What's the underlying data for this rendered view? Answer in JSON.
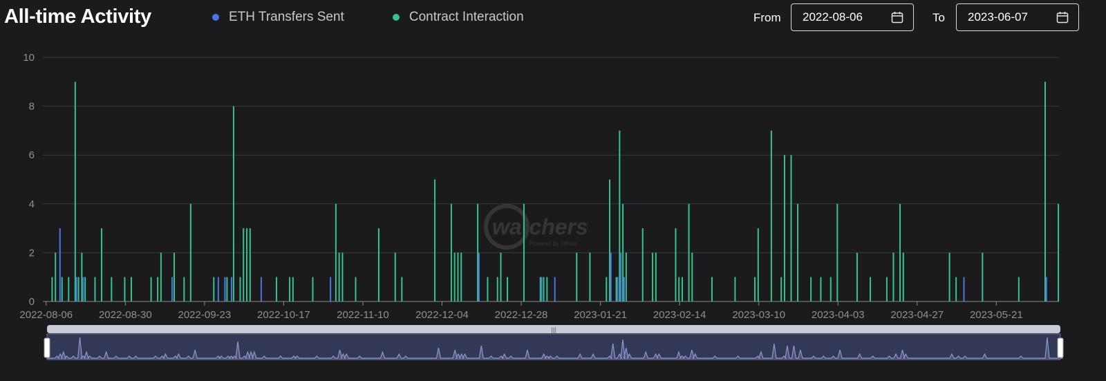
{
  "header": {
    "title": "All-time Activity"
  },
  "legend": [
    {
      "label": "ETH Transfers Sent",
      "color": "#4a78e0"
    },
    {
      "label": "Contract Interaction",
      "color": "#34c38f"
    }
  ],
  "range": {
    "from_label": "From",
    "from_value": "2022-08-06",
    "to_label": "To",
    "to_value": "2023-06-07",
    "icon": "calendar-icon"
  },
  "watermark": {
    "text": "watchers",
    "subtext": "Powered By Infinite"
  },
  "chart_data": {
    "type": "bar",
    "x_start": "2022-08-06",
    "x_end": "2023-06-07",
    "xtick_labels": [
      "2022-08-06",
      "2022-08-30",
      "2022-09-23",
      "2022-10-17",
      "2022-11-10",
      "2022-12-04",
      "2022-12-28",
      "2023-01-21",
      "2023-02-14",
      "2023-03-10",
      "2023-04-03",
      "2023-04-27",
      "2023-05-21"
    ],
    "ylim": [
      0,
      10
    ],
    "ytick_labels": [
      "0",
      "2",
      "4",
      "6",
      "8",
      "10"
    ],
    "grid": true,
    "legend_position": "top",
    "series": [
      {
        "name": "Contract Interaction",
        "color": "#34c38f",
        "points": [
          [
            "2022-08-08",
            1
          ],
          [
            "2022-08-09",
            2
          ],
          [
            "2022-08-11",
            1
          ],
          [
            "2022-08-13",
            1
          ],
          [
            "2022-08-15",
            9
          ],
          [
            "2022-08-16",
            1
          ],
          [
            "2022-08-17",
            2
          ],
          [
            "2022-08-18",
            1
          ],
          [
            "2022-08-21",
            1
          ],
          [
            "2022-08-23",
            3
          ],
          [
            "2022-08-26",
            1
          ],
          [
            "2022-08-30",
            1
          ],
          [
            "2022-09-01",
            1
          ],
          [
            "2022-09-07",
            1
          ],
          [
            "2022-09-09",
            1
          ],
          [
            "2022-09-10",
            2
          ],
          [
            "2022-09-14",
            2
          ],
          [
            "2022-09-17",
            1
          ],
          [
            "2022-09-19",
            4
          ],
          [
            "2022-09-26",
            1
          ],
          [
            "2022-09-30",
            1
          ],
          [
            "2022-10-02",
            8
          ],
          [
            "2022-10-04",
            1
          ],
          [
            "2022-10-05",
            3
          ],
          [
            "2022-10-06",
            3
          ],
          [
            "2022-10-07",
            3
          ],
          [
            "2022-10-15",
            1
          ],
          [
            "2022-10-19",
            1
          ],
          [
            "2022-10-20",
            1
          ],
          [
            "2022-10-26",
            1
          ],
          [
            "2022-11-02",
            4
          ],
          [
            "2022-11-03",
            2
          ],
          [
            "2022-11-04",
            2
          ],
          [
            "2022-11-08",
            1
          ],
          [
            "2022-11-15",
            3
          ],
          [
            "2022-11-20",
            2
          ],
          [
            "2022-11-22",
            1
          ],
          [
            "2022-12-02",
            5
          ],
          [
            "2022-12-07",
            4
          ],
          [
            "2022-12-08",
            2
          ],
          [
            "2022-12-09",
            2
          ],
          [
            "2022-12-10",
            2
          ],
          [
            "2022-12-15",
            4
          ],
          [
            "2022-12-18",
            1
          ],
          [
            "2022-12-21",
            1
          ],
          [
            "2022-12-22",
            2
          ],
          [
            "2022-12-24",
            1
          ],
          [
            "2022-12-29",
            4
          ],
          [
            "2023-01-03",
            1
          ],
          [
            "2023-01-04",
            1
          ],
          [
            "2023-01-05",
            1
          ],
          [
            "2023-01-14",
            2
          ],
          [
            "2023-01-18",
            2
          ],
          [
            "2023-01-23",
            1
          ],
          [
            "2023-01-24",
            5
          ],
          [
            "2023-01-26",
            1
          ],
          [
            "2023-01-27",
            7
          ],
          [
            "2023-01-28",
            4
          ],
          [
            "2023-01-29",
            2
          ],
          [
            "2023-02-03",
            3
          ],
          [
            "2023-02-06",
            2
          ],
          [
            "2023-02-07",
            2
          ],
          [
            "2023-02-13",
            3
          ],
          [
            "2023-02-14",
            1
          ],
          [
            "2023-02-15",
            1
          ],
          [
            "2023-02-17",
            4
          ],
          [
            "2023-02-18",
            2
          ],
          [
            "2023-02-24",
            1
          ],
          [
            "2023-03-03",
            1
          ],
          [
            "2023-03-09",
            1
          ],
          [
            "2023-03-10",
            3
          ],
          [
            "2023-03-14",
            7
          ],
          [
            "2023-03-17",
            1
          ],
          [
            "2023-03-18",
            6
          ],
          [
            "2023-03-20",
            6
          ],
          [
            "2023-03-22",
            4
          ],
          [
            "2023-03-26",
            1
          ],
          [
            "2023-03-29",
            1
          ],
          [
            "2023-04-01",
            1
          ],
          [
            "2023-04-03",
            4
          ],
          [
            "2023-04-09",
            2
          ],
          [
            "2023-04-13",
            1
          ],
          [
            "2023-04-18",
            1
          ],
          [
            "2023-04-20",
            2
          ],
          [
            "2023-04-22",
            4
          ],
          [
            "2023-04-23",
            2
          ],
          [
            "2023-05-07",
            2
          ],
          [
            "2023-05-09",
            1
          ],
          [
            "2023-05-17",
            2
          ],
          [
            "2023-05-28",
            1
          ],
          [
            "2023-06-05",
            9
          ],
          [
            "2023-06-09",
            4
          ]
        ]
      },
      {
        "name": "ETH Transfers Sent",
        "color": "#4a78e0",
        "points": [
          [
            "2022-08-10",
            3
          ],
          [
            "2022-08-15",
            1
          ],
          [
            "2022-08-17",
            1
          ],
          [
            "2022-09-13",
            1
          ],
          [
            "2022-09-27",
            1
          ],
          [
            "2022-09-29",
            1
          ],
          [
            "2022-10-01",
            1
          ],
          [
            "2022-10-10",
            1
          ],
          [
            "2022-10-31",
            1
          ],
          [
            "2023-01-03",
            1
          ],
          [
            "2023-01-07",
            1
          ],
          [
            "2023-01-24",
            2
          ],
          [
            "2023-01-26",
            1
          ],
          [
            "2023-01-27",
            2
          ],
          [
            "2023-01-28",
            1
          ],
          [
            "2023-05-11",
            1
          ],
          [
            "2023-06-05",
            1
          ],
          [
            "2022-12-15",
            2
          ]
        ]
      }
    ]
  }
}
